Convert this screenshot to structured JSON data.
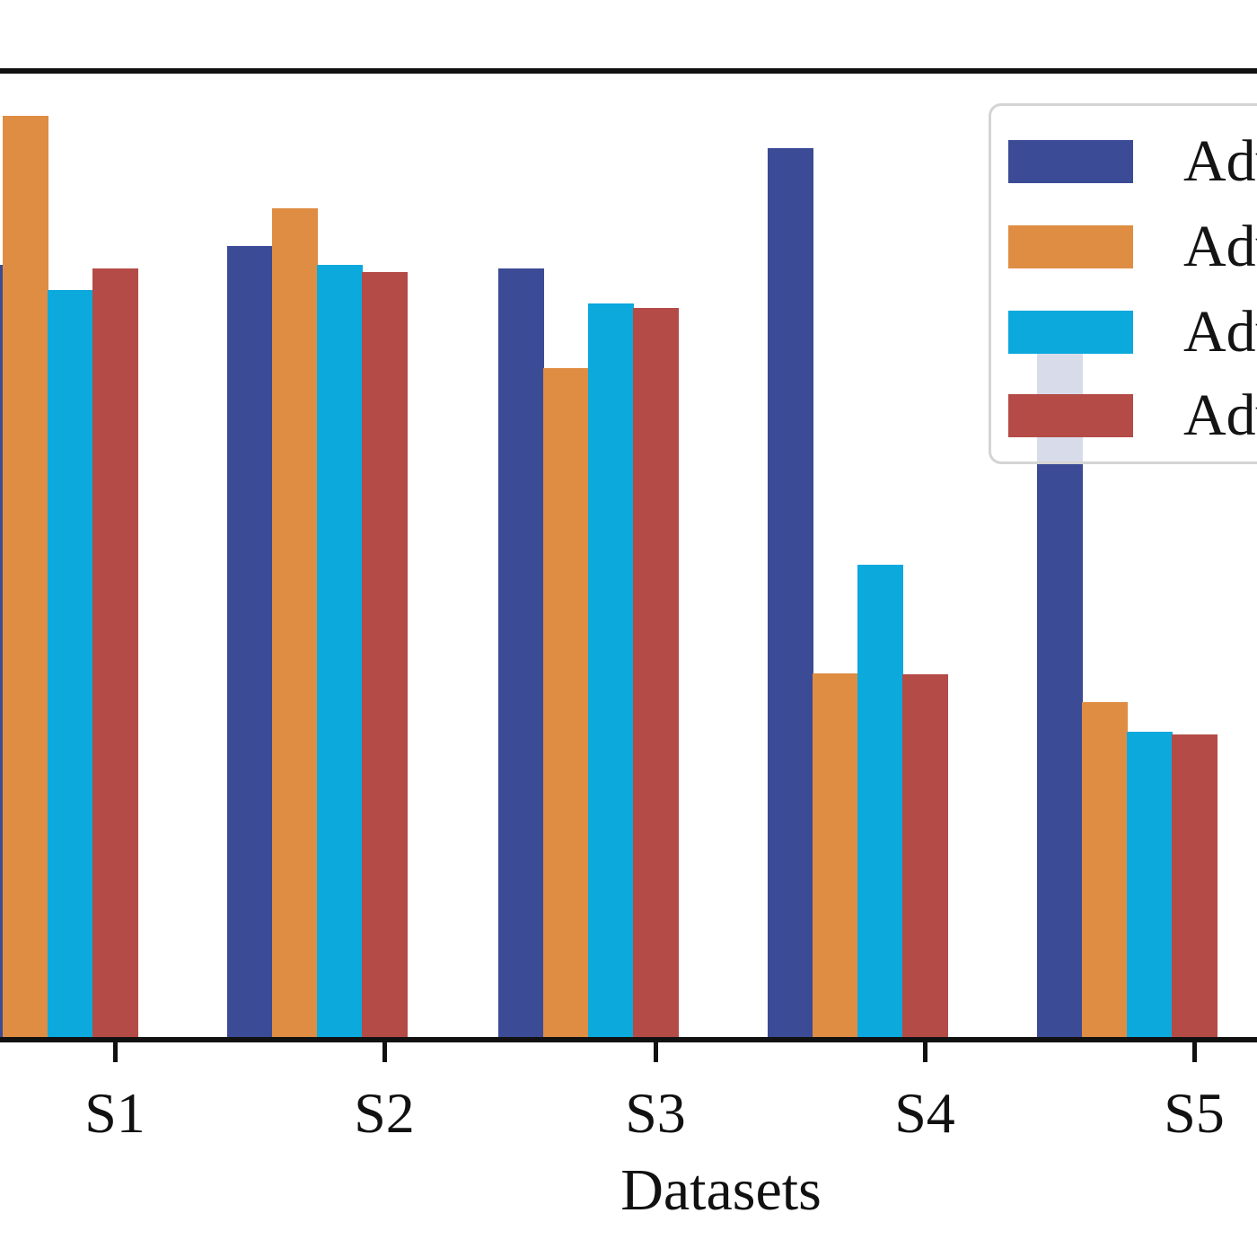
{
  "chart_data": {
    "type": "bar",
    "title": "",
    "xlabel": "Datasets",
    "ylabel": "",
    "categories": [
      "S1",
      "S2",
      "S3",
      "S4",
      "S5"
    ],
    "series": [
      {
        "name": "Adv",
        "color": "#3C4B96",
        "values": [
          0.795,
          0.815,
          0.792,
          0.915,
          0.741
        ]
      },
      {
        "name": "Adv",
        "color": "#DE8D43",
        "values": [
          0.948,
          0.853,
          0.689,
          0.376,
          0.347
        ]
      },
      {
        "name": "Adv",
        "color": "#0BA9DC",
        "values": [
          0.77,
          0.795,
          0.756,
          0.488,
          0.316
        ]
      },
      {
        "name": "Adv",
        "color": "#B44B47",
        "values": [
          0.792,
          0.788,
          0.751,
          0.375,
          0.313
        ]
      }
    ],
    "ylim": [
      0,
      1
    ],
    "grid": false,
    "legend": {
      "position": "upper-right",
      "labels": [
        "Adv",
        "Adv",
        "Adv",
        "Adv"
      ],
      "labels_truncated_at_right_edge": true,
      "frame_alpha": 0.8,
      "frame_border_color": "#d4d4d4"
    },
    "spine_color": "#111111",
    "notes": "Figure is cropped: y-axis and left spine not visible; values are estimated fractions of visible plot height. First (blue) bar of S1 is clipped at left edge; top of blue S5 bar is hidden behind the semi-transparent legend."
  }
}
